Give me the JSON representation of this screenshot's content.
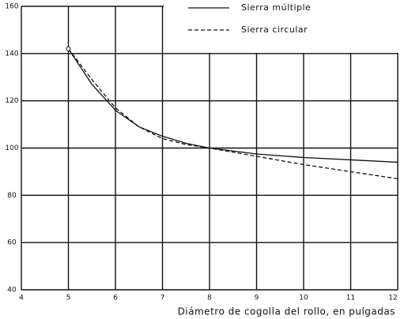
{
  "chart_data": {
    "type": "line",
    "x_label": "Diámetro de cogolla del rollo, en pulgadas",
    "x": [
      5,
      5.5,
      6,
      6.5,
      7,
      7.5,
      8,
      9,
      10,
      11,
      12
    ],
    "series": [
      {
        "name": "Sierra múltiple",
        "color": "#111111",
        "dash": false,
        "values": [
          142,
          127,
          116,
          109,
          105,
          102,
          100,
          97.5,
          96,
          95,
          94
        ]
      },
      {
        "name": "Sierra circular",
        "color": "#111111",
        "dash": true,
        "values": [
          142,
          129,
          117,
          109,
          104,
          101.5,
          100,
          96.5,
          93,
          90,
          87
        ]
      }
    ],
    "xlim": [
      4,
      12
    ],
    "xticks": [
      4,
      5,
      6,
      7,
      8,
      9,
      10,
      11,
      12
    ],
    "ylim": [
      40,
      160
    ],
    "yticks": [
      40,
      60,
      80,
      100,
      120,
      140,
      160
    ],
    "grid": true,
    "legend": "upper right"
  }
}
